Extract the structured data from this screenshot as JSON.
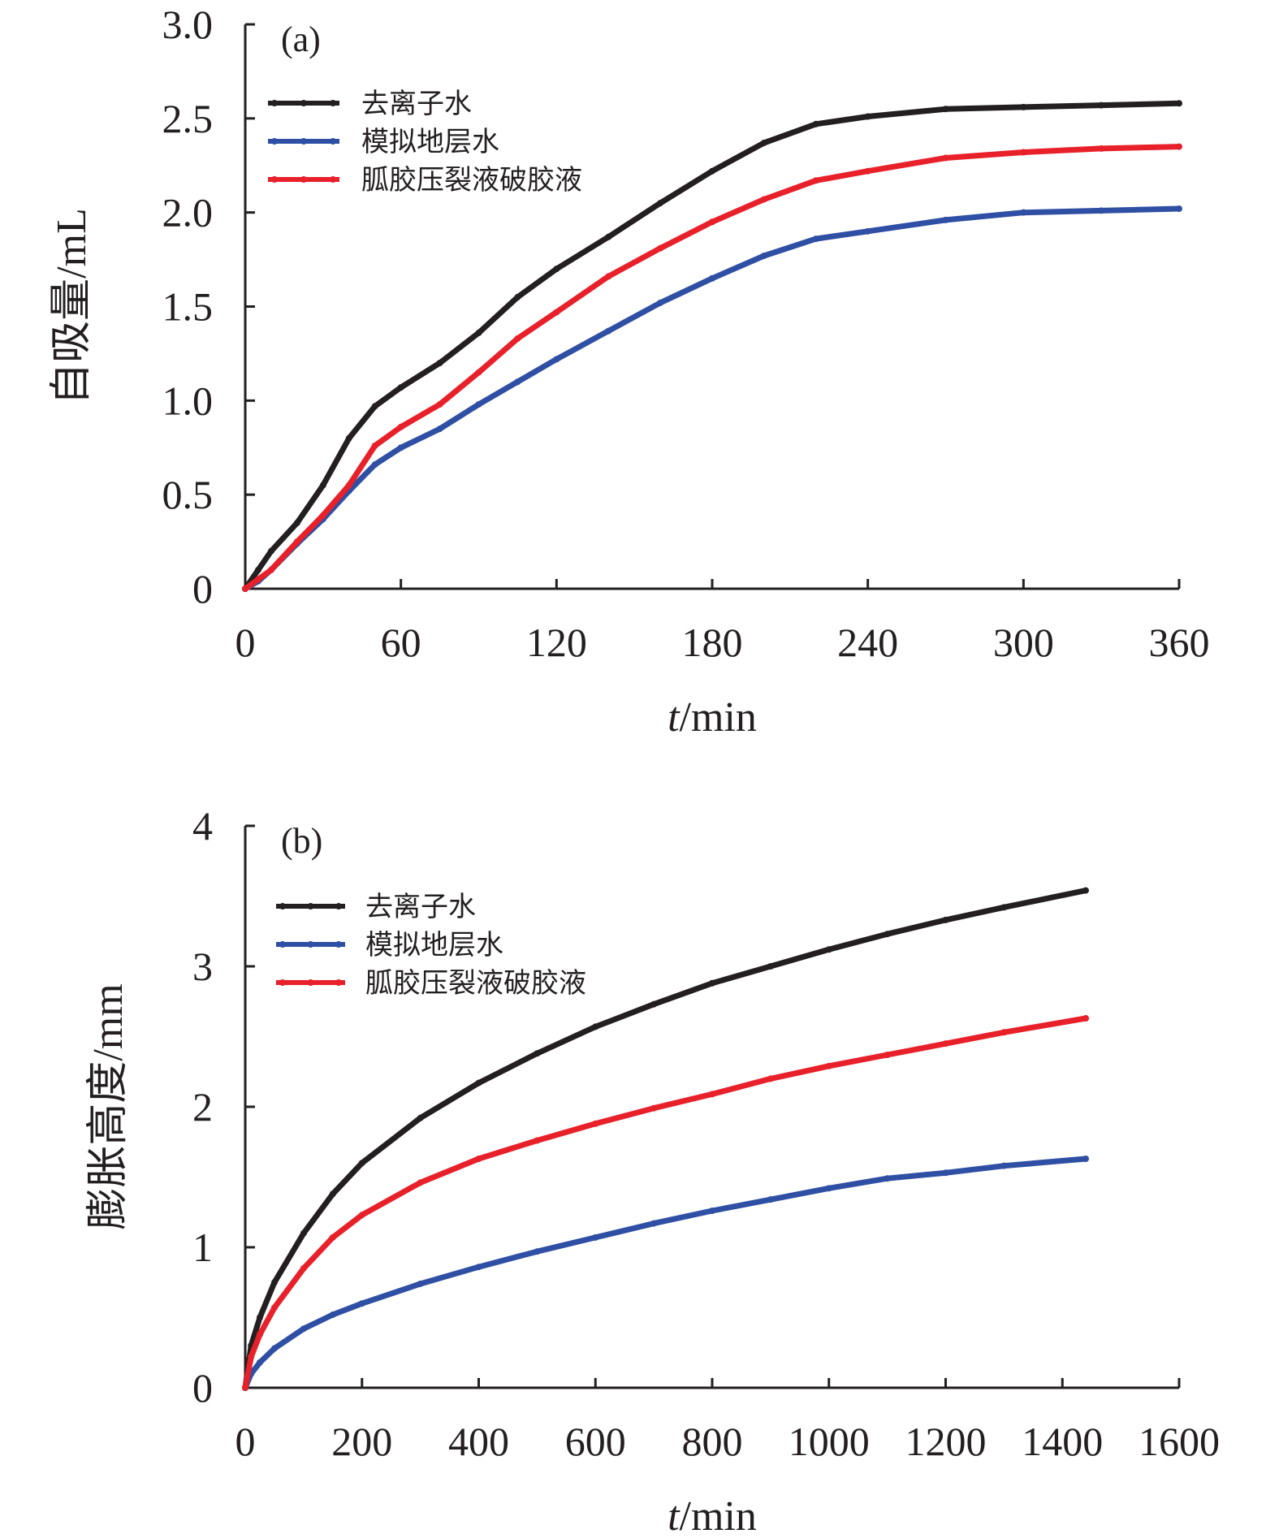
{
  "colors": {
    "deionized": "#231f20",
    "formation": "#2e4fa3",
    "guar": "#e8202a",
    "axis": "#231f20"
  },
  "chart_data": [
    {
      "type": "line",
      "panel_label": "(a)",
      "xlabel_italic": "t",
      "xlabel_unit": "/min",
      "ylabel": "自吸量/mL",
      "xlim": [
        0,
        360
      ],
      "ylim": [
        0,
        3.0
      ],
      "x_ticks": [
        0,
        60,
        120,
        180,
        240,
        300,
        360
      ],
      "x_tick_labels": [
        "0",
        "60",
        "120",
        "180",
        "240",
        "300",
        "360"
      ],
      "y_ticks": [
        0,
        0.5,
        1.0,
        1.5,
        2.0,
        2.5,
        3.0
      ],
      "y_tick_labels": [
        "0",
        "0.5",
        "1.0",
        "1.5",
        "2.0",
        "2.5",
        "3.0"
      ],
      "legend_position": "top-left",
      "series": [
        {
          "name": "去离子水",
          "color_key": "deionized",
          "x": [
            0,
            5,
            10,
            20,
            30,
            40,
            50,
            60,
            75,
            90,
            105,
            120,
            140,
            160,
            180,
            200,
            220,
            240,
            270,
            300,
            330,
            360
          ],
          "y": [
            0,
            0.1,
            0.2,
            0.35,
            0.55,
            0.8,
            0.97,
            1.07,
            1.2,
            1.36,
            1.55,
            1.7,
            1.87,
            2.05,
            2.22,
            2.37,
            2.47,
            2.51,
            2.55,
            2.56,
            2.57,
            2.58
          ]
        },
        {
          "name": "模拟地层水",
          "color_key": "formation",
          "x": [
            0,
            5,
            10,
            20,
            30,
            40,
            50,
            60,
            75,
            90,
            105,
            120,
            140,
            160,
            180,
            200,
            220,
            240,
            270,
            300,
            330,
            360
          ],
          "y": [
            0,
            0.04,
            0.1,
            0.24,
            0.37,
            0.52,
            0.66,
            0.75,
            0.85,
            0.98,
            1.1,
            1.22,
            1.37,
            1.52,
            1.65,
            1.77,
            1.86,
            1.9,
            1.96,
            2.0,
            2.01,
            2.02
          ]
        },
        {
          "name": "胍胶压裂液破胶液",
          "color_key": "guar",
          "x": [
            0,
            5,
            10,
            20,
            30,
            40,
            50,
            60,
            75,
            90,
            105,
            120,
            140,
            160,
            180,
            200,
            220,
            240,
            270,
            300,
            330,
            360
          ],
          "y": [
            0,
            0.05,
            0.1,
            0.25,
            0.39,
            0.55,
            0.76,
            0.86,
            0.98,
            1.15,
            1.33,
            1.47,
            1.66,
            1.81,
            1.95,
            2.07,
            2.17,
            2.22,
            2.29,
            2.32,
            2.34,
            2.35
          ]
        }
      ]
    },
    {
      "type": "line",
      "panel_label": "(b)",
      "xlabel_italic": "t",
      "xlabel_unit": "/min",
      "ylabel": "膨胀高度/mm",
      "xlim": [
        0,
        1600
      ],
      "ylim": [
        0,
        4
      ],
      "x_ticks": [
        0,
        200,
        400,
        600,
        800,
        1000,
        1200,
        1400,
        1600
      ],
      "x_tick_labels": [
        "0",
        "200",
        "400",
        "600",
        "800",
        "1000",
        "1200",
        "1400",
        "1600"
      ],
      "y_ticks": [
        0,
        1,
        2,
        3,
        4
      ],
      "y_tick_labels": [
        "0",
        "1",
        "2",
        "3",
        "4"
      ],
      "legend_position": "top-left",
      "series": [
        {
          "name": "去离子水",
          "color_key": "deionized",
          "x": [
            0,
            10,
            25,
            50,
            100,
            150,
            200,
            300,
            400,
            500,
            600,
            700,
            800,
            900,
            1000,
            1100,
            1200,
            1300,
            1440
          ],
          "y": [
            0,
            0.3,
            0.5,
            0.75,
            1.1,
            1.38,
            1.6,
            1.92,
            2.17,
            2.38,
            2.57,
            2.73,
            2.88,
            3.0,
            3.12,
            3.23,
            3.33,
            3.42,
            3.54
          ]
        },
        {
          "name": "模拟地层水",
          "color_key": "formation",
          "x": [
            0,
            10,
            25,
            50,
            100,
            150,
            200,
            300,
            400,
            500,
            600,
            700,
            800,
            900,
            1000,
            1100,
            1200,
            1300,
            1440
          ],
          "y": [
            0,
            0.1,
            0.18,
            0.28,
            0.42,
            0.52,
            0.6,
            0.74,
            0.86,
            0.97,
            1.07,
            1.17,
            1.26,
            1.34,
            1.42,
            1.49,
            1.53,
            1.58,
            1.63
          ]
        },
        {
          "name": "胍胶压裂液破胶液",
          "color_key": "guar",
          "x": [
            0,
            10,
            25,
            50,
            100,
            150,
            200,
            300,
            400,
            500,
            600,
            700,
            800,
            900,
            1000,
            1100,
            1200,
            1300,
            1440
          ],
          "y": [
            0,
            0.22,
            0.38,
            0.57,
            0.85,
            1.07,
            1.23,
            1.46,
            1.63,
            1.76,
            1.88,
            1.99,
            2.09,
            2.2,
            2.29,
            2.37,
            2.45,
            2.53,
            2.63
          ]
        }
      ]
    }
  ]
}
